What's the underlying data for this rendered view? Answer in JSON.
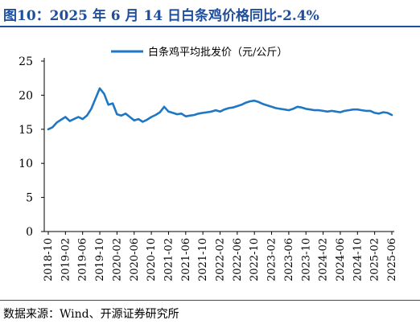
{
  "page": {
    "title": "图10：2025 年 6 月 14 日白条鸡价格同比-2.4%",
    "source": "数据来源：Wind、开源证券研究所"
  },
  "colors": {
    "title": "#1f4e9c",
    "line": "#1f77c4",
    "axis": "#000000"
  },
  "chart_data": {
    "type": "line",
    "title": "",
    "xlabel": "",
    "ylabel": "",
    "ylim": [
      0,
      25
    ],
    "yticks": [
      0,
      5,
      10,
      15,
      20,
      25
    ],
    "grid": false,
    "legend_position": "top-center",
    "x_tick_labels": [
      "2018-10",
      "2019-02",
      "2019-06",
      "2019-10",
      "2020-02",
      "2020-06",
      "2020-10",
      "2021-02",
      "2021-06",
      "2021-10",
      "2022-02",
      "2022-06",
      "2022-10",
      "2023-02",
      "2023-06",
      "2023-10",
      "2024-02",
      "2024-06",
      "2024-10",
      "2025-02",
      "2025-06"
    ],
    "series": [
      {
        "name": "白条鸡平均批发价（元/公斤）",
        "color": "#1f77c4",
        "x": [
          "2018-10",
          "2018-11",
          "2018-12",
          "2019-01",
          "2019-02",
          "2019-03",
          "2019-04",
          "2019-05",
          "2019-06",
          "2019-07",
          "2019-08",
          "2019-09",
          "2019-10",
          "2019-11",
          "2019-12",
          "2020-01",
          "2020-02",
          "2020-03",
          "2020-04",
          "2020-05",
          "2020-06",
          "2020-07",
          "2020-08",
          "2020-09",
          "2020-10",
          "2020-11",
          "2020-12",
          "2021-01",
          "2021-02",
          "2021-03",
          "2021-04",
          "2021-05",
          "2021-06",
          "2021-07",
          "2021-08",
          "2021-09",
          "2021-10",
          "2021-11",
          "2021-12",
          "2022-01",
          "2022-02",
          "2022-03",
          "2022-04",
          "2022-05",
          "2022-06",
          "2022-07",
          "2022-08",
          "2022-09",
          "2022-10",
          "2022-11",
          "2022-12",
          "2023-01",
          "2023-02",
          "2023-03",
          "2023-04",
          "2023-05",
          "2023-06",
          "2023-07",
          "2023-08",
          "2023-09",
          "2023-10",
          "2023-11",
          "2023-12",
          "2024-01",
          "2024-02",
          "2024-03",
          "2024-04",
          "2024-05",
          "2024-06",
          "2024-07",
          "2024-08",
          "2024-09",
          "2024-10",
          "2024-11",
          "2024-12",
          "2025-01",
          "2025-02",
          "2025-03",
          "2025-04",
          "2025-05",
          "2025-06"
        ],
        "values": [
          15.0,
          15.3,
          16.0,
          16.4,
          16.8,
          16.2,
          16.5,
          16.8,
          16.5,
          17.0,
          18.0,
          19.5,
          21.0,
          20.2,
          18.6,
          18.8,
          17.2,
          17.0,
          17.3,
          16.8,
          16.3,
          16.5,
          16.1,
          16.4,
          16.8,
          17.1,
          17.5,
          18.3,
          17.6,
          17.4,
          17.2,
          17.3,
          16.9,
          17.0,
          17.1,
          17.3,
          17.4,
          17.5,
          17.6,
          17.8,
          17.6,
          17.9,
          18.1,
          18.2,
          18.4,
          18.6,
          18.9,
          19.1,
          19.2,
          19.0,
          18.7,
          18.5,
          18.3,
          18.1,
          18.0,
          17.9,
          17.8,
          18.0,
          18.3,
          18.2,
          18.0,
          17.9,
          17.8,
          17.8,
          17.7,
          17.6,
          17.7,
          17.6,
          17.5,
          17.7,
          17.8,
          17.9,
          17.9,
          17.8,
          17.7,
          17.7,
          17.4,
          17.3,
          17.5,
          17.4,
          17.1
        ]
      }
    ]
  }
}
